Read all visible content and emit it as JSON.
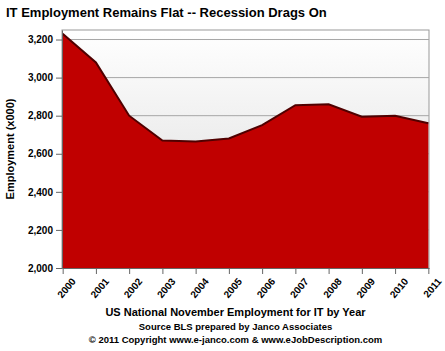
{
  "chart_data": {
    "type": "area",
    "title": "IT Employment Remains Flat  -- Recession Drags On",
    "x_label": "US National November Employment for IT by Year",
    "y_label": "Employment (x000)",
    "annotations": [
      "Source BLS prepared by Janco Associates",
      "© 2011 Copyright www.e-janco.com & www.eJobDescription.com"
    ],
    "categories": [
      "2000",
      "2001",
      "2002",
      "2003",
      "2004",
      "2005",
      "2006",
      "2007",
      "2008",
      "2009",
      "2010",
      "2011"
    ],
    "values": [
      3230,
      3080,
      2800,
      2670,
      2665,
      2680,
      2750,
      2855,
      2860,
      2795,
      2800,
      2760
    ],
    "color": "#c00000",
    "ylim": [
      2000,
      3250
    ],
    "yticks": [
      {
        "value": 2000,
        "label": "2,000"
      },
      {
        "value": 2200,
        "label": "2,200"
      },
      {
        "value": 2400,
        "label": "2,400"
      },
      {
        "value": 2600,
        "label": "2,600"
      },
      {
        "value": 2800,
        "label": "2,800"
      },
      {
        "value": 3000,
        "label": "3,000"
      },
      {
        "value": 3200,
        "label": "3,200"
      }
    ],
    "grid": true
  }
}
